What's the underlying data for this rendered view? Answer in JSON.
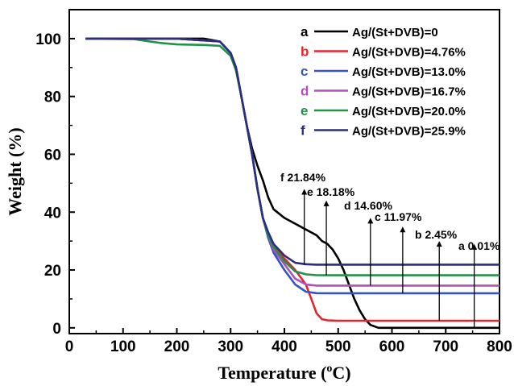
{
  "chart_data": {
    "type": "line",
    "xlabel": "Temperature (",
    "xlabel_sup": "o",
    "xlabel_tail": "C)",
    "ylabel": "Weight (%)",
    "xlim": [
      0,
      800
    ],
    "ylim": [
      -2,
      110
    ],
    "xticks": [
      0,
      100,
      200,
      300,
      400,
      500,
      600,
      700,
      800
    ],
    "yticks": [
      0,
      20,
      40,
      60,
      80,
      100
    ],
    "legend_position": "top-right",
    "series": [
      {
        "letter": "a",
        "name": "Ag/(St+DVB)=0",
        "color": "#000000",
        "points": [
          [
            30,
            100
          ],
          [
            150,
            100
          ],
          [
            200,
            100
          ],
          [
            250,
            100
          ],
          [
            280,
            99
          ],
          [
            300,
            95
          ],
          [
            310,
            90
          ],
          [
            320,
            80
          ],
          [
            330,
            70
          ],
          [
            340,
            62
          ],
          [
            350,
            56
          ],
          [
            360,
            51
          ],
          [
            370,
            45
          ],
          [
            380,
            41
          ],
          [
            400,
            38
          ],
          [
            420,
            36
          ],
          [
            440,
            34
          ],
          [
            460,
            32
          ],
          [
            470,
            30
          ],
          [
            480,
            29
          ],
          [
            490,
            27
          ],
          [
            500,
            24
          ],
          [
            510,
            20
          ],
          [
            520,
            15
          ],
          [
            530,
            10
          ],
          [
            540,
            6
          ],
          [
            550,
            3
          ],
          [
            560,
            1
          ],
          [
            575,
            0
          ],
          [
            600,
            0
          ],
          [
            700,
            0
          ],
          [
            800,
            0
          ]
        ]
      },
      {
        "letter": "b",
        "name": "Ag/(St+DVB)=4.76%",
        "color": "#e8242a",
        "points": [
          [
            30,
            100
          ],
          [
            200,
            100
          ],
          [
            280,
            99
          ],
          [
            300,
            95
          ],
          [
            310,
            90
          ],
          [
            320,
            80
          ],
          [
            330,
            70
          ],
          [
            340,
            60
          ],
          [
            350,
            48
          ],
          [
            360,
            38
          ],
          [
            370,
            32
          ],
          [
            380,
            28
          ],
          [
            400,
            24
          ],
          [
            420,
            20
          ],
          [
            440,
            15
          ],
          [
            450,
            10
          ],
          [
            460,
            5
          ],
          [
            470,
            3
          ],
          [
            480,
            2.6
          ],
          [
            500,
            2.45
          ],
          [
            600,
            2.45
          ],
          [
            700,
            2.45
          ],
          [
            800,
            2.45
          ]
        ]
      },
      {
        "letter": "c",
        "name": "Ag/(St+DVB)=13.0%",
        "color": "#3553c4",
        "points": [
          [
            30,
            100
          ],
          [
            200,
            100
          ],
          [
            280,
            99
          ],
          [
            300,
            95
          ],
          [
            310,
            90
          ],
          [
            320,
            80
          ],
          [
            330,
            70
          ],
          [
            340,
            60
          ],
          [
            350,
            48
          ],
          [
            360,
            38
          ],
          [
            370,
            31
          ],
          [
            380,
            26
          ],
          [
            400,
            20
          ],
          [
            420,
            15
          ],
          [
            440,
            12.5
          ],
          [
            460,
            12
          ],
          [
            500,
            11.97
          ],
          [
            600,
            11.97
          ],
          [
            700,
            11.97
          ],
          [
            800,
            11.97
          ]
        ]
      },
      {
        "letter": "d",
        "name": "Ag/(St+DVB)=16.7%",
        "color": "#b24fb8",
        "points": [
          [
            30,
            100
          ],
          [
            200,
            100
          ],
          [
            280,
            99
          ],
          [
            300,
            95
          ],
          [
            310,
            90
          ],
          [
            320,
            80
          ],
          [
            330,
            70
          ],
          [
            340,
            60
          ],
          [
            350,
            48
          ],
          [
            360,
            38
          ],
          [
            370,
            32
          ],
          [
            380,
            27
          ],
          [
            400,
            22
          ],
          [
            420,
            17
          ],
          [
            440,
            15
          ],
          [
            460,
            14.6
          ],
          [
            500,
            14.6
          ],
          [
            600,
            14.6
          ],
          [
            700,
            14.6
          ],
          [
            800,
            14.6
          ]
        ]
      },
      {
        "letter": "e",
        "name": "Ag/(St+DVB)=20.0%",
        "color": "#22914a",
        "points": [
          [
            30,
            100
          ],
          [
            120,
            99.8
          ],
          [
            150,
            99
          ],
          [
            170,
            98.5
          ],
          [
            200,
            98
          ],
          [
            250,
            97.8
          ],
          [
            280,
            97.5
          ],
          [
            300,
            94
          ],
          [
            310,
            89
          ],
          [
            320,
            80
          ],
          [
            330,
            70
          ],
          [
            340,
            60
          ],
          [
            350,
            48
          ],
          [
            360,
            38
          ],
          [
            370,
            32
          ],
          [
            380,
            28
          ],
          [
            400,
            23
          ],
          [
            420,
            19.5
          ],
          [
            440,
            18.5
          ],
          [
            460,
            18.2
          ],
          [
            500,
            18.18
          ],
          [
            600,
            18.18
          ],
          [
            700,
            18.18
          ],
          [
            800,
            18.18
          ]
        ]
      },
      {
        "letter": "f",
        "name": "Ag/(St+DVB)=25.9%",
        "color": "#2b2e7c",
        "points": [
          [
            30,
            100
          ],
          [
            200,
            100
          ],
          [
            280,
            99
          ],
          [
            300,
            95
          ],
          [
            310,
            90
          ],
          [
            320,
            80
          ],
          [
            330,
            70
          ],
          [
            340,
            60
          ],
          [
            350,
            48
          ],
          [
            360,
            38
          ],
          [
            370,
            33
          ],
          [
            380,
            29
          ],
          [
            400,
            25
          ],
          [
            420,
            22.5
          ],
          [
            440,
            22
          ],
          [
            460,
            21.84
          ],
          [
            500,
            21.84
          ],
          [
            600,
            21.84
          ],
          [
            700,
            21.84
          ],
          [
            800,
            21.84
          ]
        ]
      }
    ],
    "annotations": [
      {
        "label": "f 21.84%",
        "arrow_x": 437,
        "arrow_top": 48
      },
      {
        "label": "e 18.18%",
        "arrow_x": 478,
        "arrow_top": 44
      },
      {
        "label": "d 14.60%",
        "arrow_x": 560,
        "arrow_top": 38
      },
      {
        "label": "c 11.97%",
        "arrow_x": 620,
        "arrow_top": 35
      },
      {
        "label": "b 2.45%",
        "arrow_x": 688,
        "arrow_top": 30
      },
      {
        "label": "a 0.01%",
        "arrow_x": 753,
        "arrow_top": 29
      }
    ]
  }
}
